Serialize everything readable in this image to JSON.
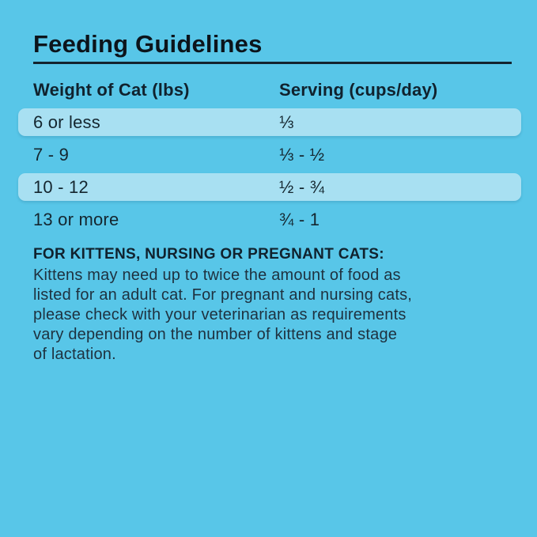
{
  "title": "Feeding Guidelines",
  "table": {
    "columns": {
      "weight": "Weight of Cat (lbs)",
      "serving": "Serving (cups/day)"
    },
    "rows": [
      {
        "weight": "6 or less",
        "serving": "⅓",
        "highlighted": true
      },
      {
        "weight": "7 - 9",
        "serving": "⅓ - ½",
        "highlighted": false
      },
      {
        "weight": "10 - 12",
        "serving": "½ - ¾",
        "highlighted": true
      },
      {
        "weight": "13 or more",
        "serving": "¾ - 1",
        "highlighted": false
      }
    ]
  },
  "note": {
    "heading": "FOR KITTENS, NURSING OR PREGNANT CATS:",
    "lines": [
      "Kittens may need up to twice the amount of food as",
      "listed for an adult cat. For pregnant and nursing cats,",
      "please check with your veterinarian as requirements",
      "vary depending on the number of kittens and stage",
      "of lactation."
    ]
  },
  "colors": {
    "background": "#58C6E8",
    "row_highlight": "#A8E0F2",
    "title_text": "#0C141B",
    "table_text": "#14262F",
    "body_text": "#1E313F",
    "rule": "#14242F"
  }
}
